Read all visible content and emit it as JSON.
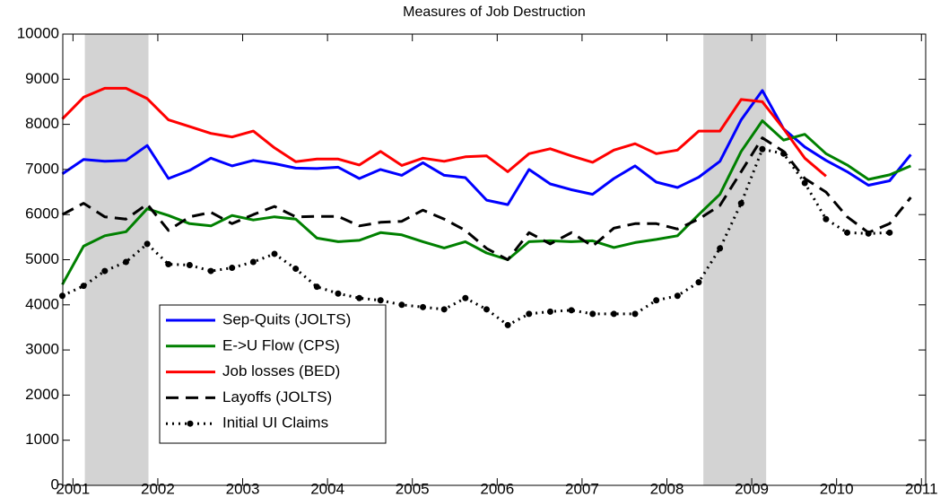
{
  "chart_data": {
    "type": "line",
    "title": "Measures of Job Destruction",
    "x": [
      2000.875,
      2001.125,
      2001.375,
      2001.625,
      2001.875,
      2002.125,
      2002.375,
      2002.625,
      2002.875,
      2003.125,
      2003.375,
      2003.625,
      2003.875,
      2004.125,
      2004.375,
      2004.625,
      2004.875,
      2005.125,
      2005.375,
      2005.625,
      2005.875,
      2006.125,
      2006.375,
      2006.625,
      2006.875,
      2007.125,
      2007.375,
      2007.625,
      2007.875,
      2008.125,
      2008.375,
      2008.625,
      2008.875,
      2009.125,
      2009.375,
      2009.625,
      2009.875,
      2010.125,
      2010.375,
      2010.625,
      2010.875
    ],
    "series": [
      {
        "name": "Sep-Quits (JOLTS)",
        "color": "#0000ff",
        "dash": "solid",
        "values": [
          6900,
          7220,
          7180,
          7200,
          7530,
          6800,
          6980,
          7250,
          7080,
          7200,
          7130,
          7030,
          7020,
          7050,
          6800,
          7000,
          6870,
          7150,
          6870,
          6820,
          6320,
          6220,
          7000,
          6680,
          6550,
          6450,
          6800,
          7080,
          6720,
          6600,
          6830,
          7180,
          8100,
          8750,
          7900,
          7500,
          7200,
          6950,
          6650,
          6750,
          7330
        ]
      },
      {
        "name": "E->U Flow (CPS)",
        "color": "#008000",
        "dash": "solid",
        "values": [
          4450,
          5300,
          5530,
          5620,
          6130,
          5980,
          5800,
          5750,
          5980,
          5880,
          5950,
          5900,
          5480,
          5400,
          5430,
          5600,
          5550,
          5400,
          5260,
          5400,
          5150,
          5000,
          5400,
          5420,
          5400,
          5420,
          5270,
          5380,
          5450,
          5530,
          6000,
          6450,
          7400,
          8080,
          7650,
          7780,
          7350,
          7100,
          6780,
          6880,
          7080
        ]
      },
      {
        "name": "Job losses (BED)",
        "color": "#ff0000",
        "dash": "solid",
        "values": [
          8120,
          8600,
          8800,
          8800,
          8570,
          8100,
          7950,
          7800,
          7720,
          7850,
          7480,
          7170,
          7230,
          7230,
          7100,
          7400,
          7090,
          7250,
          7180,
          7280,
          7300,
          6950,
          7350,
          7460,
          7300,
          7160,
          7430,
          7570,
          7350,
          7430,
          7850,
          7850,
          8550,
          8500,
          7900,
          7250,
          6850,
          null,
          null,
          null,
          null
        ]
      },
      {
        "name": "Layoffs (JOLTS)",
        "color": "#000000",
        "dash": "dashed",
        "values": [
          6000,
          6250,
          5950,
          5900,
          6230,
          5650,
          5950,
          6050,
          5800,
          6000,
          6180,
          5950,
          5960,
          5960,
          5750,
          5830,
          5850,
          6100,
          5900,
          5650,
          5250,
          5000,
          5600,
          5350,
          5600,
          5300,
          5700,
          5800,
          5800,
          5680,
          5900,
          6200,
          6950,
          7700,
          7400,
          6800,
          6500,
          5950,
          5600,
          5800,
          6380
        ]
      },
      {
        "name": "Initial UI Claims",
        "color": "#000000",
        "dash": "dotted",
        "marker": "dot",
        "values": [
          4200,
          4420,
          4750,
          4950,
          5350,
          4900,
          4880,
          4750,
          4820,
          4950,
          5130,
          4800,
          4400,
          4250,
          4150,
          4100,
          4000,
          3950,
          3900,
          4150,
          3900,
          3550,
          3800,
          3850,
          3880,
          3800,
          3800,
          3800,
          4100,
          4200,
          4500,
          5250,
          6250,
          7450,
          7350,
          6700,
          5900,
          5600,
          5580,
          5600,
          null
        ]
      }
    ],
    "recessions": [
      [
        2001.14,
        2001.89
      ],
      [
        2008.43,
        2009.17
      ]
    ],
    "recession_color": "#d3d3d3",
    "xlim": [
      2000.88,
      2011.05
    ],
    "xticks": [
      2001,
      2002,
      2003,
      2004,
      2005,
      2006,
      2007,
      2008,
      2009,
      2010,
      2011
    ],
    "ylim": [
      0,
      10000
    ],
    "yticks": [
      0,
      1000,
      2000,
      3000,
      4000,
      5000,
      6000,
      7000,
      8000,
      9000,
      10000
    ],
    "legend": "lower-left"
  }
}
